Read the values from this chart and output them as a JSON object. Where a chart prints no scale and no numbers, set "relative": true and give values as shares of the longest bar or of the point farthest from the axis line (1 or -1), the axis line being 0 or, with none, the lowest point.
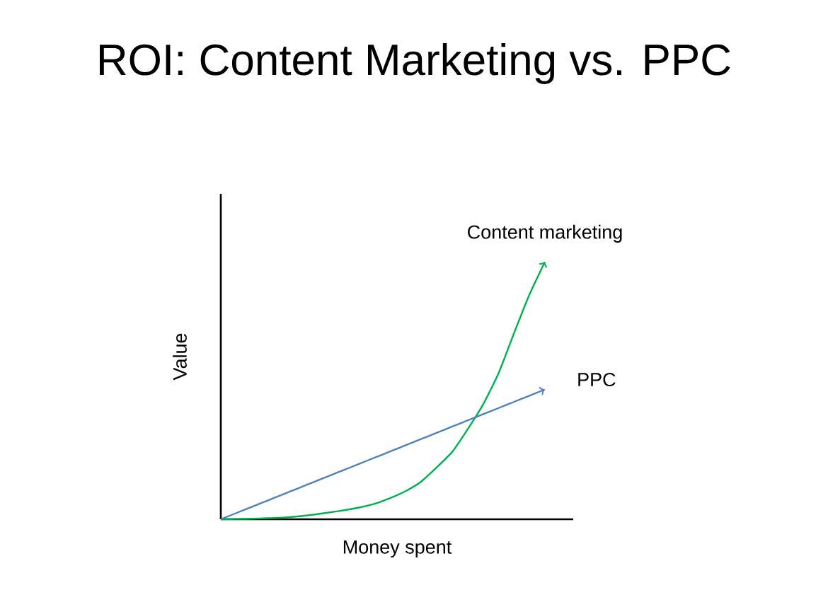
{
  "chart_data": {
    "type": "line",
    "title": "ROI: Content Marketing vs. PPC",
    "xlabel": "Money spent",
    "ylabel": "Value",
    "relative": true,
    "categories": [
      null,
      null,
      null,
      null,
      null,
      null,
      null,
      null,
      null,
      null,
      null,
      null,
      null,
      null,
      null,
      null,
      null,
      null,
      null,
      null,
      null,
      null
    ],
    "series": [
      {
        "name": "Content marketing",
        "color": "#00b050",
        "values": [
          0,
          0.001,
          0.002,
          0.004,
          0.006,
          0.011,
          0.018,
          0.026,
          0.035,
          0.046,
          0.061,
          0.083,
          0.11,
          0.147,
          0.202,
          0.262,
          0.35,
          0.446,
          0.567,
          0.723,
          0.873,
          1
        ]
      },
      {
        "name": "PPC",
        "color": "#4f81bd",
        "values": [
          0,
          0.024,
          0.048,
          0.072,
          0.096,
          0.12,
          0.144,
          0.168,
          0.192,
          0.216,
          0.24,
          0.264,
          0.288,
          0.312,
          0.336,
          0.36,
          0.384,
          0.408,
          0.432,
          0.456,
          0.48,
          0.504
        ]
      }
    ]
  }
}
